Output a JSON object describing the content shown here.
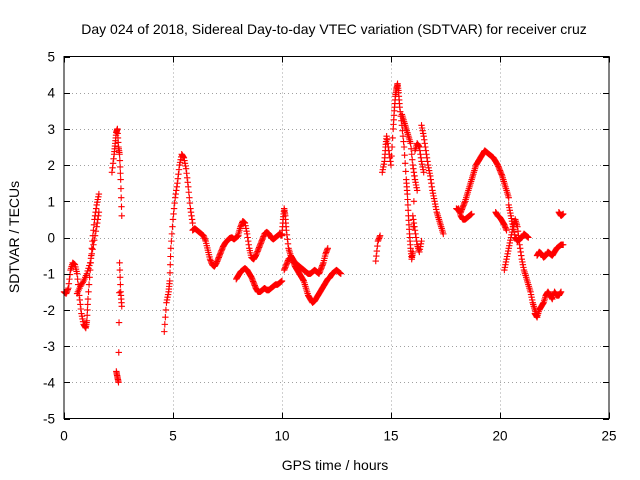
{
  "chart_data": {
    "type": "scatter",
    "title": "Day 024 of 2018, Sidereal Day-to-day VTEC variation (SDTVAR) for receiver cruz",
    "xlabel": "GPS time / hours",
    "ylabel": "SDTVAR / TECUs",
    "xlim": [
      0,
      25
    ],
    "ylim": [
      -5,
      5
    ],
    "xticks": [
      0,
      5,
      10,
      15,
      20,
      25
    ],
    "yticks": [
      -5,
      -4,
      -3,
      -2,
      -1,
      0,
      1,
      2,
      3,
      4,
      5
    ],
    "grid": true,
    "marker": "+",
    "color": "#ff0000",
    "series": [
      {
        "name": "SDTVAR",
        "segments": [
          {
            "x": [
              0.0,
              0.1,
              0.2,
              0.3,
              0.4,
              0.5,
              0.6,
              0.7,
              0.8,
              0.9,
              1.0,
              1.05,
              1.1,
              1.2,
              1.3,
              1.4,
              1.5,
              1.6
            ],
            "y": [
              -1.5,
              -1.55,
              -1.4,
              -0.9,
              -0.7,
              -0.75,
              -1.0,
              -1.6,
              -2.1,
              -2.4,
              -2.5,
              -2.3,
              -1.7,
              -0.9,
              -0.1,
              0.5,
              0.9,
              1.2
            ]
          },
          {
            "x": [
              0.6,
              0.75,
              0.9,
              1.05,
              1.2,
              1.35,
              1.5,
              1.6
            ],
            "y": [
              -1.55,
              -1.35,
              -1.2,
              -1.0,
              -0.7,
              -0.2,
              0.3,
              0.7
            ]
          },
          {
            "x": [
              2.2,
              2.3,
              2.35,
              2.4,
              2.45,
              2.5,
              2.55,
              2.6,
              2.65
            ],
            "y": [
              1.8,
              2.3,
              2.6,
              2.9,
              3.0,
              2.5,
              2.3,
              1.6,
              0.6
            ]
          },
          {
            "x": [
              2.4,
              2.45,
              2.5,
              2.55,
              2.6,
              2.65
            ],
            "y": [
              -3.7,
              -3.85,
              -4.0,
              -0.7,
              -1.5,
              -1.9
            ]
          },
          {
            "x": [
              4.6,
              4.7,
              4.8,
              4.85,
              4.9,
              5.0,
              5.1,
              5.2,
              5.3,
              5.4,
              5.5,
              5.6,
              5.7,
              5.8,
              5.9
            ],
            "y": [
              -2.6,
              -1.8,
              -1.5,
              -1.2,
              -0.3,
              0.5,
              1.1,
              1.5,
              2.0,
              2.3,
              2.2,
              1.9,
              1.4,
              0.8,
              0.4
            ]
          },
          {
            "x": [
              5.9,
              6.0,
              6.1,
              6.2,
              6.3,
              6.4,
              6.5,
              6.6,
              6.7,
              6.8,
              6.9,
              7.0,
              7.1,
              7.2,
              7.3,
              7.4,
              7.5,
              7.6,
              7.7,
              7.8,
              7.9,
              8.0
            ],
            "y": [
              0.2,
              0.25,
              0.2,
              0.15,
              0.1,
              0.05,
              -0.1,
              -0.35,
              -0.6,
              -0.75,
              -0.8,
              -0.7,
              -0.55,
              -0.4,
              -0.25,
              -0.15,
              -0.08,
              -0.02,
              0.0,
              -0.05,
              0.0,
              0.05
            ]
          },
          {
            "x": [
              8.0,
              8.1,
              8.2,
              8.3,
              8.4,
              8.5,
              8.6,
              8.7,
              8.8,
              8.9,
              9.0,
              9.1,
              9.2,
              9.3,
              9.4,
              9.5,
              9.6,
              9.7,
              9.8,
              9.9,
              10.0
            ],
            "y": [
              0.1,
              0.3,
              0.45,
              0.4,
              0.1,
              -0.3,
              -0.55,
              -0.6,
              -0.5,
              -0.35,
              -0.2,
              -0.05,
              0.1,
              0.15,
              0.1,
              0.0,
              -0.05,
              0.0,
              0.05,
              0.1,
              0.05
            ]
          },
          {
            "x": [
              7.9,
              8.0,
              8.1,
              8.2,
              8.3,
              8.4,
              8.5,
              8.6,
              8.7,
              8.8,
              8.9,
              9.0,
              9.1,
              9.2,
              9.3,
              9.4,
              9.5,
              9.6,
              9.7,
              9.8,
              9.9,
              10.0
            ],
            "y": [
              -1.15,
              -1.05,
              -0.95,
              -0.9,
              -0.85,
              -0.9,
              -1.0,
              -1.1,
              -1.25,
              -1.4,
              -1.5,
              -1.5,
              -1.45,
              -1.4,
              -1.45,
              -1.45,
              -1.4,
              -1.35,
              -1.3,
              -1.3,
              -1.25,
              -1.2
            ]
          },
          {
            "x": [
              10.0,
              10.05,
              10.1,
              10.15,
              10.2,
              10.3,
              10.4,
              10.5,
              10.6,
              10.7,
              10.8,
              10.9,
              11.0,
              11.1,
              11.2,
              11.3,
              11.4,
              11.5,
              11.6,
              11.7,
              11.8,
              11.9,
              12.0,
              12.1
            ],
            "y": [
              0.1,
              0.5,
              0.8,
              0.6,
              0.2,
              -0.3,
              -0.5,
              -0.6,
              -0.7,
              -0.75,
              -0.8,
              -0.85,
              -0.9,
              -0.95,
              -1.0,
              -1.0,
              -0.95,
              -0.9,
              -0.95,
              -1.0,
              -0.85,
              -0.7,
              -0.45,
              -0.3
            ]
          },
          {
            "x": [
              10.1,
              10.2,
              10.3,
              10.4,
              10.5,
              10.6,
              10.7,
              10.8,
              10.9,
              11.0,
              11.1,
              11.2,
              11.3,
              11.4,
              11.5,
              11.6,
              11.7,
              11.8,
              11.9,
              12.0,
              12.1,
              12.2,
              12.3,
              12.4,
              12.5,
              12.6,
              12.7
            ],
            "y": [
              -0.9,
              -0.75,
              -0.6,
              -0.55,
              -0.65,
              -0.8,
              -0.9,
              -1.0,
              -1.1,
              -1.2,
              -1.4,
              -1.6,
              -1.7,
              -1.8,
              -1.75,
              -1.65,
              -1.55,
              -1.45,
              -1.35,
              -1.25,
              -1.15,
              -1.1,
              -1.0,
              -0.95,
              -0.9,
              -0.95,
              -1.0
            ]
          },
          {
            "x": [
              14.3,
              14.4,
              14.5
            ],
            "y": [
              -0.65,
              -0.1,
              0.05
            ]
          },
          {
            "x": [
              14.6,
              14.7,
              14.75,
              14.8,
              14.9,
              15.0,
              15.1,
              15.15,
              15.2,
              15.25,
              15.3,
              15.35,
              15.4,
              15.5,
              15.6,
              15.7,
              15.75,
              15.8,
              15.85,
              15.9,
              15.95,
              16.0,
              16.1,
              16.2,
              16.3,
              16.4,
              16.5
            ],
            "y": [
              1.8,
              2.1,
              2.5,
              2.8,
              2.4,
              2.0,
              3.0,
              3.5,
              3.9,
              4.1,
              4.25,
              4.0,
              3.6,
              3.1,
              2.5,
              1.6,
              1.2,
              0.6,
              0.1,
              -0.3,
              -0.6,
              -0.4,
              2.4,
              2.6,
              2.5,
              2.1,
              1.8
            ]
          },
          {
            "x": [
              15.5,
              15.6,
              15.7,
              15.8,
              15.9,
              16.0,
              16.1,
              16.2
            ],
            "y": [
              3.4,
              3.2,
              3.0,
              2.8,
              2.6,
              2.0,
              1.6,
              1.3
            ]
          },
          {
            "x": [
              16.4,
              16.5,
              16.6,
              16.7,
              16.8,
              16.9,
              17.0,
              17.1,
              17.2,
              17.3,
              17.4
            ],
            "y": [
              3.1,
              2.8,
              2.4,
              2.0,
              1.7,
              1.3,
              1.0,
              0.7,
              0.5,
              0.3,
              0.1
            ]
          },
          {
            "x": [
              16.0,
              16.1,
              16.2,
              16.3,
              16.4
            ],
            "y": [
              0.6,
              0.2,
              -0.2,
              -0.4,
              -0.1
            ]
          },
          {
            "x": [
              18.0,
              18.1,
              18.2,
              18.3,
              18.4,
              18.5,
              18.6,
              18.7,
              18.8,
              18.9,
              19.0,
              19.1,
              19.2,
              19.3,
              19.4,
              19.5,
              19.6,
              19.7,
              19.8,
              19.9,
              20.0,
              20.1,
              20.2,
              20.3,
              20.4
            ],
            "y": [
              0.8,
              0.75,
              0.7,
              0.85,
              1.0,
              1.2,
              1.4,
              1.6,
              1.8,
              2.0,
              2.1,
              2.2,
              2.3,
              2.4,
              2.35,
              2.3,
              2.25,
              2.2,
              2.1,
              2.0,
              1.85,
              1.7,
              1.5,
              1.3,
              1.1
            ]
          },
          {
            "x": [
              18.1,
              18.2,
              18.3,
              18.4,
              18.5,
              18.6,
              18.7
            ],
            "y": [
              0.8,
              0.6,
              0.5,
              0.5,
              0.55,
              0.6,
              0.65
            ]
          },
          {
            "x": [
              20.4,
              20.5,
              20.6,
              20.7,
              20.8,
              20.9,
              21.0,
              21.1,
              21.2,
              21.3
            ],
            "y": [
              0.9,
              0.6,
              0.3,
              0.0,
              -0.1,
              -0.05,
              0.0,
              0.1,
              0.05,
              0.0
            ]
          },
          {
            "x": [
              20.2,
              20.3,
              20.4,
              20.5,
              20.6,
              20.7,
              20.8,
              20.9,
              21.0,
              21.1,
              21.2,
              21.3,
              21.4,
              21.5,
              21.6,
              21.7
            ],
            "y": [
              -0.9,
              -0.6,
              -0.3,
              0.0,
              0.3,
              0.5,
              0.3,
              -0.2,
              -0.6,
              -0.9,
              -1.1,
              -1.3,
              -1.5,
              -1.8,
              -2.0,
              -2.2
            ]
          },
          {
            "x": [
              19.8,
              19.9,
              20.0,
              20.1,
              20.2,
              20.3
            ],
            "y": [
              0.7,
              0.6,
              0.55,
              0.45,
              0.35,
              0.2
            ]
          },
          {
            "x": [
              21.7,
              21.8,
              21.9,
              22.0,
              22.1,
              22.2,
              22.3,
              22.4,
              22.5,
              22.6,
              22.7,
              22.8,
              22.9
            ],
            "y": [
              -0.5,
              -0.4,
              -0.45,
              -0.55,
              -0.5,
              -0.4,
              -0.45,
              -0.5,
              -0.4,
              -0.3,
              -0.25,
              -0.2,
              -0.2
            ]
          },
          {
            "x": [
              21.6,
              21.7,
              21.8,
              21.9,
              22.0,
              22.1,
              22.2,
              22.3,
              22.4,
              22.5,
              22.6,
              22.7,
              22.8
            ],
            "y": [
              -2.1,
              -2.2,
              -2.0,
              -1.9,
              -1.8,
              -1.6,
              -1.5,
              -1.6,
              -1.7,
              -1.5,
              -1.6,
              -1.6,
              -1.5
            ]
          },
          {
            "x": [
              22.7,
              22.8,
              22.9
            ],
            "y": [
              0.7,
              0.6,
              0.65
            ]
          }
        ]
      }
    ]
  }
}
